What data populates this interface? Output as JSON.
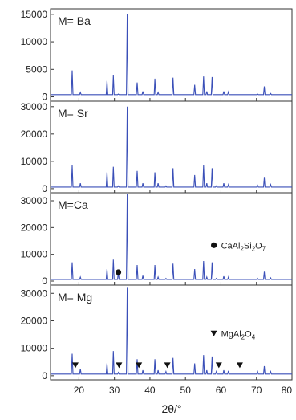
{
  "chart_data": {
    "type": "line",
    "xlabel": "2θ/°",
    "xlim": [
      12,
      80
    ],
    "xticks": [
      20,
      30,
      40,
      50,
      60,
      70,
      80
    ],
    "line_color": "#3a4fb8",
    "peak_positions": [
      18.1,
      20.4,
      27.9,
      29.7,
      31.1,
      33.6,
      36.4,
      38.0,
      41.4,
      42.3,
      44.5,
      46.5,
      52.6,
      55.1,
      56.0,
      57.5,
      58.7,
      60.8,
      62.1,
      70.3,
      72.2,
      74.0
    ],
    "panels": [
      {
        "label": "M= Ba",
        "ylim": [
          -800,
          16000
        ],
        "yticks": [
          0,
          5000,
          10000,
          15000
        ],
        "baseline": 400,
        "peaks": [
          4800,
          800,
          2900,
          3900,
          500,
          15000,
          2600,
          1000,
          3300,
          800,
          400,
          3500,
          2200,
          3700,
          1000,
          3600,
          400,
          1000,
          900,
          500,
          1900,
          600
        ],
        "annotation": null
      },
      {
        "label": "M= Sr",
        "ylim": [
          -1500,
          32000
        ],
        "yticks": [
          0,
          10000,
          20000,
          30000
        ],
        "baseline": 600,
        "peaks": [
          8500,
          2000,
          6000,
          8000,
          1000,
          30000,
          6500,
          2000,
          6000,
          2000,
          1000,
          7500,
          5000,
          8500,
          2000,
          7500,
          1000,
          2000,
          1500,
          1200,
          4000,
          1500
        ],
        "annotation": null
      },
      {
        "label": "M=Ca",
        "ylim": [
          -1500,
          33000
        ],
        "yticks": [
          0,
          10000,
          20000,
          30000
        ],
        "baseline": 600,
        "peaks": [
          7000,
          1500,
          4500,
          8000,
          3500,
          32500,
          6000,
          2000,
          6000,
          1500,
          1000,
          6500,
          4500,
          7500,
          1500,
          7000,
          1000,
          1800,
          1500,
          1000,
          3500,
          1200
        ],
        "annotation": {
          "text_parts": [
            "CaAl",
            "2",
            "Si",
            "2",
            "O",
            "7"
          ],
          "symbol": "circle",
          "markers_x": [
            31.1
          ],
          "marker_y": 3300,
          "legend_x": 58,
          "legend_y": 12500
        }
      },
      {
        "label": "M= Mg",
        "ylim": [
          -1500,
          33000
        ],
        "yticks": [
          0,
          10000,
          20000,
          30000
        ],
        "baseline": 600,
        "peaks": [
          8000,
          2500,
          4500,
          9000,
          1200,
          32000,
          6000,
          2000,
          6000,
          2000,
          1500,
          6500,
          4500,
          7500,
          2000,
          7000,
          1500,
          2000,
          1800,
          1500,
          3500,
          1500
        ],
        "annotation": {
          "text_parts": [
            "MgAl",
            "2",
            "O",
            "4"
          ],
          "symbol": "triangle",
          "markers_x": [
            19.0,
            31.3,
            36.9,
            44.9,
            59.4,
            65.3
          ],
          "marker_y": 3800,
          "legend_x": 58,
          "legend_y": 14500
        }
      }
    ]
  }
}
